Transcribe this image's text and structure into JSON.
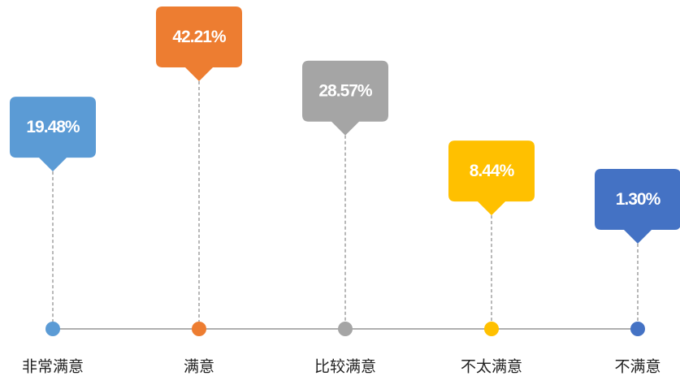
{
  "chart_data": {
    "type": "callout",
    "categories": [
      "非常满意",
      "满意",
      "比较满意",
      "不太满意",
      "不满意"
    ],
    "values": [
      19.48,
      42.21,
      28.57,
      8.44,
      1.3
    ],
    "value_labels": [
      "19.48%",
      "42.21%",
      "28.57%",
      "8.44%",
      "1.30%"
    ],
    "colors": [
      "#5b9bd5",
      "#ed7d31",
      "#a5a5a5",
      "#ffc000",
      "#4472c4"
    ]
  }
}
